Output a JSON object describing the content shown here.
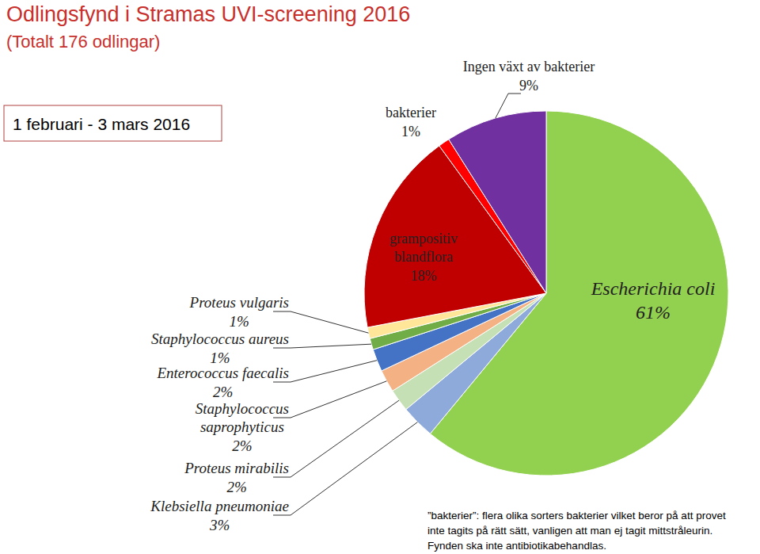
{
  "chart_data": {
    "type": "pie",
    "title": "Odlingsfynd i Stramas UVI-screening 2016",
    "subtitle": "(Totalt 176 odlingar)",
    "annotation": "1 februari - 3 mars 2016",
    "categories": [
      "Escherichia coli",
      "Klebsiella pneumoniae",
      "Proteus mirabilis",
      "Staphylococcus saprophyticus",
      "Enterococcus faecalis",
      "Staphylococcus aureus",
      "Proteus vulgaris",
      "grampositiv blandflora",
      "bakterier",
      "Ingen växt av bakterier"
    ],
    "values": [
      61,
      3,
      2,
      2,
      2,
      1,
      1,
      18,
      1,
      9
    ],
    "value_labels": [
      "61%",
      "3%",
      "2%",
      "2%",
      "2%",
      "1%",
      "1%",
      "18%",
      "1%",
      "9%"
    ],
    "colors": [
      "#92d050",
      "#8eaadb",
      "#c5e0b4",
      "#f4b183",
      "#4472c4",
      "#70ad47",
      "#ffe699",
      "#c00000",
      "#ff0000",
      "#7030a0"
    ],
    "data_labels": true,
    "footnote": [
      "”bakterier”: flera olika sorters bakterier vilket beror på att provet",
      "inte tagits på rätt sätt, vanligen att man ej tagit mittstråleurin.",
      "Fynden ska inte antibiotikabehandlas."
    ]
  }
}
